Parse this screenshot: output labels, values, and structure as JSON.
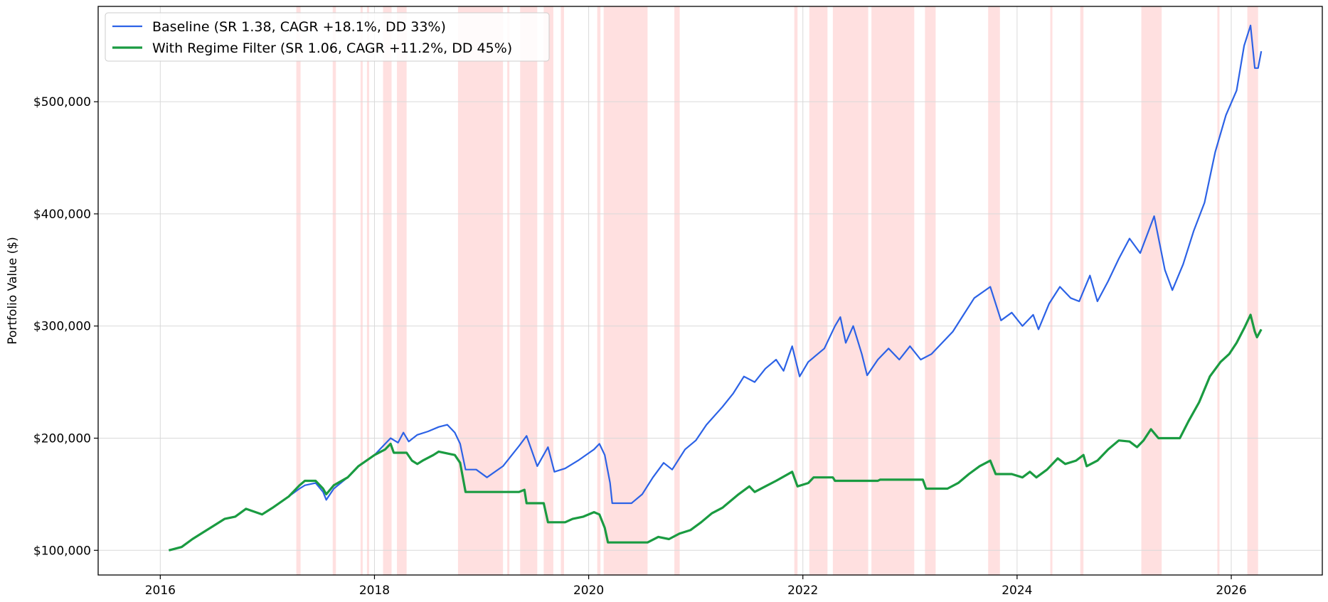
{
  "chart_data": {
    "type": "line",
    "title": "",
    "xlabel": "",
    "ylabel": "Portfolio Value ($)",
    "x_range": [
      2015.42,
      2026.85
    ],
    "ylim": [
      78000,
      585000
    ],
    "x_ticks": [
      {
        "value": 2016,
        "label": "2016"
      },
      {
        "value": 2018,
        "label": "2018"
      },
      {
        "value": 2020,
        "label": "2020"
      },
      {
        "value": 2022,
        "label": "2022"
      },
      {
        "value": 2024,
        "label": "2024"
      },
      {
        "value": 2026,
        "label": "2026"
      }
    ],
    "y_ticks": [
      {
        "value": 100000,
        "label": "$100,000"
      },
      {
        "value": 200000,
        "label": "$200,000"
      },
      {
        "value": 300000,
        "label": "$300,000"
      },
      {
        "value": 400000,
        "label": "$400,000"
      },
      {
        "value": 500000,
        "label": "$500,000"
      }
    ],
    "grid": true,
    "legend_position": "top-left",
    "shaded_regions_color": "#ffdada",
    "shaded_regions": [
      [
        2017.27,
        2017.31
      ],
      [
        2017.61,
        2017.64
      ],
      [
        2017.87,
        2017.89
      ],
      [
        2017.93,
        2017.95
      ],
      [
        2018.08,
        2018.16
      ],
      [
        2018.21,
        2018.3
      ],
      [
        2018.78,
        2019.2
      ],
      [
        2019.24,
        2019.26
      ],
      [
        2019.36,
        2019.52
      ],
      [
        2019.58,
        2019.67
      ],
      [
        2019.74,
        2019.77
      ],
      [
        2020.08,
        2020.11
      ],
      [
        2020.14,
        2020.55
      ],
      [
        2020.8,
        2020.85
      ],
      [
        2021.92,
        2021.95
      ],
      [
        2022.06,
        2022.23
      ],
      [
        2022.28,
        2022.61
      ],
      [
        2022.64,
        2023.04
      ],
      [
        2023.14,
        2023.24
      ],
      [
        2023.73,
        2023.84
      ],
      [
        2024.31,
        2024.33
      ],
      [
        2024.59,
        2024.62
      ],
      [
        2025.16,
        2025.35
      ],
      [
        2025.87,
        2025.89
      ],
      [
        2026.15,
        2026.25
      ]
    ],
    "series": [
      {
        "name": "Baseline (SR 1.38, CAGR +18.1%, DD 33%)",
        "color": "#2c62e6",
        "points": [
          [
            2016.08,
            100000
          ],
          [
            2016.2,
            103000
          ],
          [
            2016.3,
            110000
          ],
          [
            2016.4,
            116000
          ],
          [
            2016.5,
            122000
          ],
          [
            2016.6,
            128000
          ],
          [
            2016.7,
            130000
          ],
          [
            2016.8,
            137000
          ],
          [
            2016.95,
            132000
          ],
          [
            2017.05,
            138000
          ],
          [
            2017.2,
            148000
          ],
          [
            2017.3,
            155000
          ],
          [
            2017.35,
            158000
          ],
          [
            2017.45,
            160000
          ],
          [
            2017.52,
            152000
          ],
          [
            2017.55,
            145000
          ],
          [
            2017.62,
            155000
          ],
          [
            2017.75,
            165000
          ],
          [
            2017.85,
            175000
          ],
          [
            2018.0,
            185000
          ],
          [
            2018.1,
            195000
          ],
          [
            2018.15,
            200000
          ],
          [
            2018.22,
            196000
          ],
          [
            2018.27,
            205000
          ],
          [
            2018.32,
            197000
          ],
          [
            2018.4,
            203000
          ],
          [
            2018.5,
            206000
          ],
          [
            2018.6,
            210000
          ],
          [
            2018.68,
            212000
          ],
          [
            2018.75,
            205000
          ],
          [
            2018.8,
            195000
          ],
          [
            2018.85,
            172000
          ],
          [
            2018.95,
            172000
          ],
          [
            2019.05,
            165000
          ],
          [
            2019.2,
            175000
          ],
          [
            2019.35,
            193000
          ],
          [
            2019.42,
            202000
          ],
          [
            2019.52,
            175000
          ],
          [
            2019.62,
            192000
          ],
          [
            2019.68,
            170000
          ],
          [
            2019.78,
            173000
          ],
          [
            2019.9,
            180000
          ],
          [
            2020.05,
            190000
          ],
          [
            2020.1,
            195000
          ],
          [
            2020.15,
            185000
          ],
          [
            2020.2,
            160000
          ],
          [
            2020.22,
            142000
          ],
          [
            2020.4,
            142000
          ],
          [
            2020.5,
            150000
          ],
          [
            2020.6,
            165000
          ],
          [
            2020.7,
            178000
          ],
          [
            2020.78,
            172000
          ],
          [
            2020.9,
            190000
          ],
          [
            2021.0,
            198000
          ],
          [
            2021.1,
            212000
          ],
          [
            2021.25,
            228000
          ],
          [
            2021.35,
            240000
          ],
          [
            2021.45,
            255000
          ],
          [
            2021.55,
            250000
          ],
          [
            2021.65,
            262000
          ],
          [
            2021.75,
            270000
          ],
          [
            2021.82,
            260000
          ],
          [
            2021.9,
            282000
          ],
          [
            2021.97,
            255000
          ],
          [
            2022.05,
            268000
          ],
          [
            2022.2,
            280000
          ],
          [
            2022.3,
            300000
          ],
          [
            2022.35,
            308000
          ],
          [
            2022.4,
            285000
          ],
          [
            2022.47,
            300000
          ],
          [
            2022.55,
            275000
          ],
          [
            2022.6,
            256000
          ],
          [
            2022.7,
            270000
          ],
          [
            2022.8,
            280000
          ],
          [
            2022.9,
            270000
          ],
          [
            2023.0,
            282000
          ],
          [
            2023.1,
            270000
          ],
          [
            2023.2,
            275000
          ],
          [
            2023.3,
            285000
          ],
          [
            2023.4,
            295000
          ],
          [
            2023.5,
            310000
          ],
          [
            2023.6,
            325000
          ],
          [
            2023.75,
            335000
          ],
          [
            2023.85,
            305000
          ],
          [
            2023.95,
            312000
          ],
          [
            2024.05,
            300000
          ],
          [
            2024.15,
            310000
          ],
          [
            2024.2,
            297000
          ],
          [
            2024.3,
            320000
          ],
          [
            2024.4,
            335000
          ],
          [
            2024.5,
            325000
          ],
          [
            2024.58,
            322000
          ],
          [
            2024.68,
            345000
          ],
          [
            2024.75,
            322000
          ],
          [
            2024.85,
            340000
          ],
          [
            2024.95,
            360000
          ],
          [
            2025.05,
            378000
          ],
          [
            2025.15,
            365000
          ],
          [
            2025.28,
            398000
          ],
          [
            2025.38,
            350000
          ],
          [
            2025.45,
            332000
          ],
          [
            2025.55,
            355000
          ],
          [
            2025.65,
            385000
          ],
          [
            2025.75,
            410000
          ],
          [
            2025.85,
            455000
          ],
          [
            2025.95,
            488000
          ],
          [
            2026.05,
            510000
          ],
          [
            2026.12,
            550000
          ],
          [
            2026.18,
            568000
          ],
          [
            2026.22,
            530000
          ],
          [
            2026.25,
            530000
          ],
          [
            2026.28,
            545000
          ]
        ]
      },
      {
        "name": "With Regime Filter (SR 1.06, CAGR +11.2%, DD 45%)",
        "color": "#1a9b41",
        "points": [
          [
            2016.08,
            100000
          ],
          [
            2016.2,
            103000
          ],
          [
            2016.3,
            110000
          ],
          [
            2016.4,
            116000
          ],
          [
            2016.5,
            122000
          ],
          [
            2016.6,
            128000
          ],
          [
            2016.7,
            130000
          ],
          [
            2016.8,
            137000
          ],
          [
            2016.95,
            132000
          ],
          [
            2017.05,
            138000
          ],
          [
            2017.2,
            148000
          ],
          [
            2017.3,
            158000
          ],
          [
            2017.35,
            162000
          ],
          [
            2017.45,
            162000
          ],
          [
            2017.52,
            155000
          ],
          [
            2017.55,
            150000
          ],
          [
            2017.62,
            158000
          ],
          [
            2017.75,
            165000
          ],
          [
            2017.85,
            175000
          ],
          [
            2018.0,
            185000
          ],
          [
            2018.1,
            190000
          ],
          [
            2018.15,
            195000
          ],
          [
            2018.18,
            187000
          ],
          [
            2018.3,
            187000
          ],
          [
            2018.35,
            180000
          ],
          [
            2018.4,
            177000
          ],
          [
            2018.45,
            180000
          ],
          [
            2018.55,
            185000
          ],
          [
            2018.6,
            188000
          ],
          [
            2018.75,
            185000
          ],
          [
            2018.8,
            178000
          ],
          [
            2018.85,
            152000
          ],
          [
            2019.35,
            152000
          ],
          [
            2019.4,
            154000
          ],
          [
            2019.42,
            142000
          ],
          [
            2019.58,
            142000
          ],
          [
            2019.62,
            125000
          ],
          [
            2019.78,
            125000
          ],
          [
            2019.85,
            128000
          ],
          [
            2019.95,
            130000
          ],
          [
            2020.05,
            134000
          ],
          [
            2020.1,
            132000
          ],
          [
            2020.15,
            120000
          ],
          [
            2020.18,
            107000
          ],
          [
            2020.55,
            107000
          ],
          [
            2020.65,
            112000
          ],
          [
            2020.75,
            110000
          ],
          [
            2020.85,
            115000
          ],
          [
            2020.95,
            118000
          ],
          [
            2021.05,
            125000
          ],
          [
            2021.15,
            133000
          ],
          [
            2021.25,
            138000
          ],
          [
            2021.4,
            150000
          ],
          [
            2021.5,
            157000
          ],
          [
            2021.55,
            152000
          ],
          [
            2021.65,
            157000
          ],
          [
            2021.75,
            162000
          ],
          [
            2021.9,
            170000
          ],
          [
            2021.95,
            157000
          ],
          [
            2022.05,
            160000
          ],
          [
            2022.1,
            165000
          ],
          [
            2022.28,
            165000
          ],
          [
            2022.3,
            162000
          ],
          [
            2022.7,
            162000
          ],
          [
            2022.72,
            163000
          ],
          [
            2023.12,
            163000
          ],
          [
            2023.15,
            155000
          ],
          [
            2023.35,
            155000
          ],
          [
            2023.45,
            160000
          ],
          [
            2023.55,
            168000
          ],
          [
            2023.65,
            175000
          ],
          [
            2023.75,
            180000
          ],
          [
            2023.8,
            168000
          ],
          [
            2023.95,
            168000
          ],
          [
            2024.05,
            165000
          ],
          [
            2024.12,
            170000
          ],
          [
            2024.18,
            165000
          ],
          [
            2024.28,
            172000
          ],
          [
            2024.38,
            182000
          ],
          [
            2024.45,
            177000
          ],
          [
            2024.55,
            180000
          ],
          [
            2024.62,
            185000
          ],
          [
            2024.65,
            175000
          ],
          [
            2024.75,
            180000
          ],
          [
            2024.85,
            190000
          ],
          [
            2024.95,
            198000
          ],
          [
            2025.05,
            197000
          ],
          [
            2025.12,
            192000
          ],
          [
            2025.18,
            198000
          ],
          [
            2025.25,
            208000
          ],
          [
            2025.32,
            200000
          ],
          [
            2025.52,
            200000
          ],
          [
            2025.6,
            215000
          ],
          [
            2025.7,
            232000
          ],
          [
            2025.8,
            255000
          ],
          [
            2025.9,
            268000
          ],
          [
            2025.98,
            275000
          ],
          [
            2026.05,
            285000
          ],
          [
            2026.12,
            298000
          ],
          [
            2026.18,
            310000
          ],
          [
            2026.22,
            295000
          ],
          [
            2026.24,
            290000
          ],
          [
            2026.28,
            297000
          ]
        ]
      }
    ]
  }
}
